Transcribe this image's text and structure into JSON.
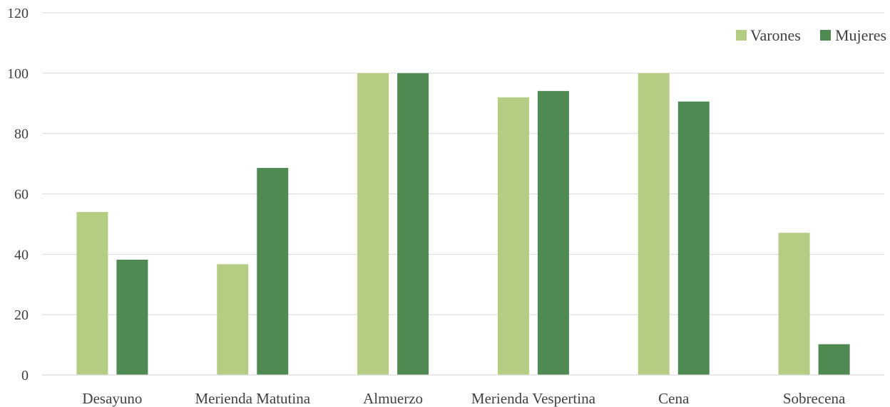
{
  "chart_data": {
    "type": "bar",
    "title": "",
    "xlabel": "",
    "ylabel": "",
    "categories": [
      "Desayuno",
      "Merienda Matutina",
      "Almuerzo",
      "Merienda Vespertina",
      "Cena",
      "Sobrecena"
    ],
    "series": [
      {
        "name": "Varones",
        "color": "#b5cd82",
        "values": [
          54,
          36.7,
          100,
          92,
          100,
          47.1
        ]
      },
      {
        "name": "Mujeres",
        "color": "#4e8a52",
        "values": [
          38.2,
          68.6,
          100,
          94.1,
          90.6,
          10.2
        ]
      }
    ],
    "ylim": [
      0,
      120
    ],
    "yticks": [
      "0",
      "20",
      "40",
      "60",
      "80",
      "100",
      "120"
    ],
    "grid": true,
    "legend": "top-right"
  }
}
